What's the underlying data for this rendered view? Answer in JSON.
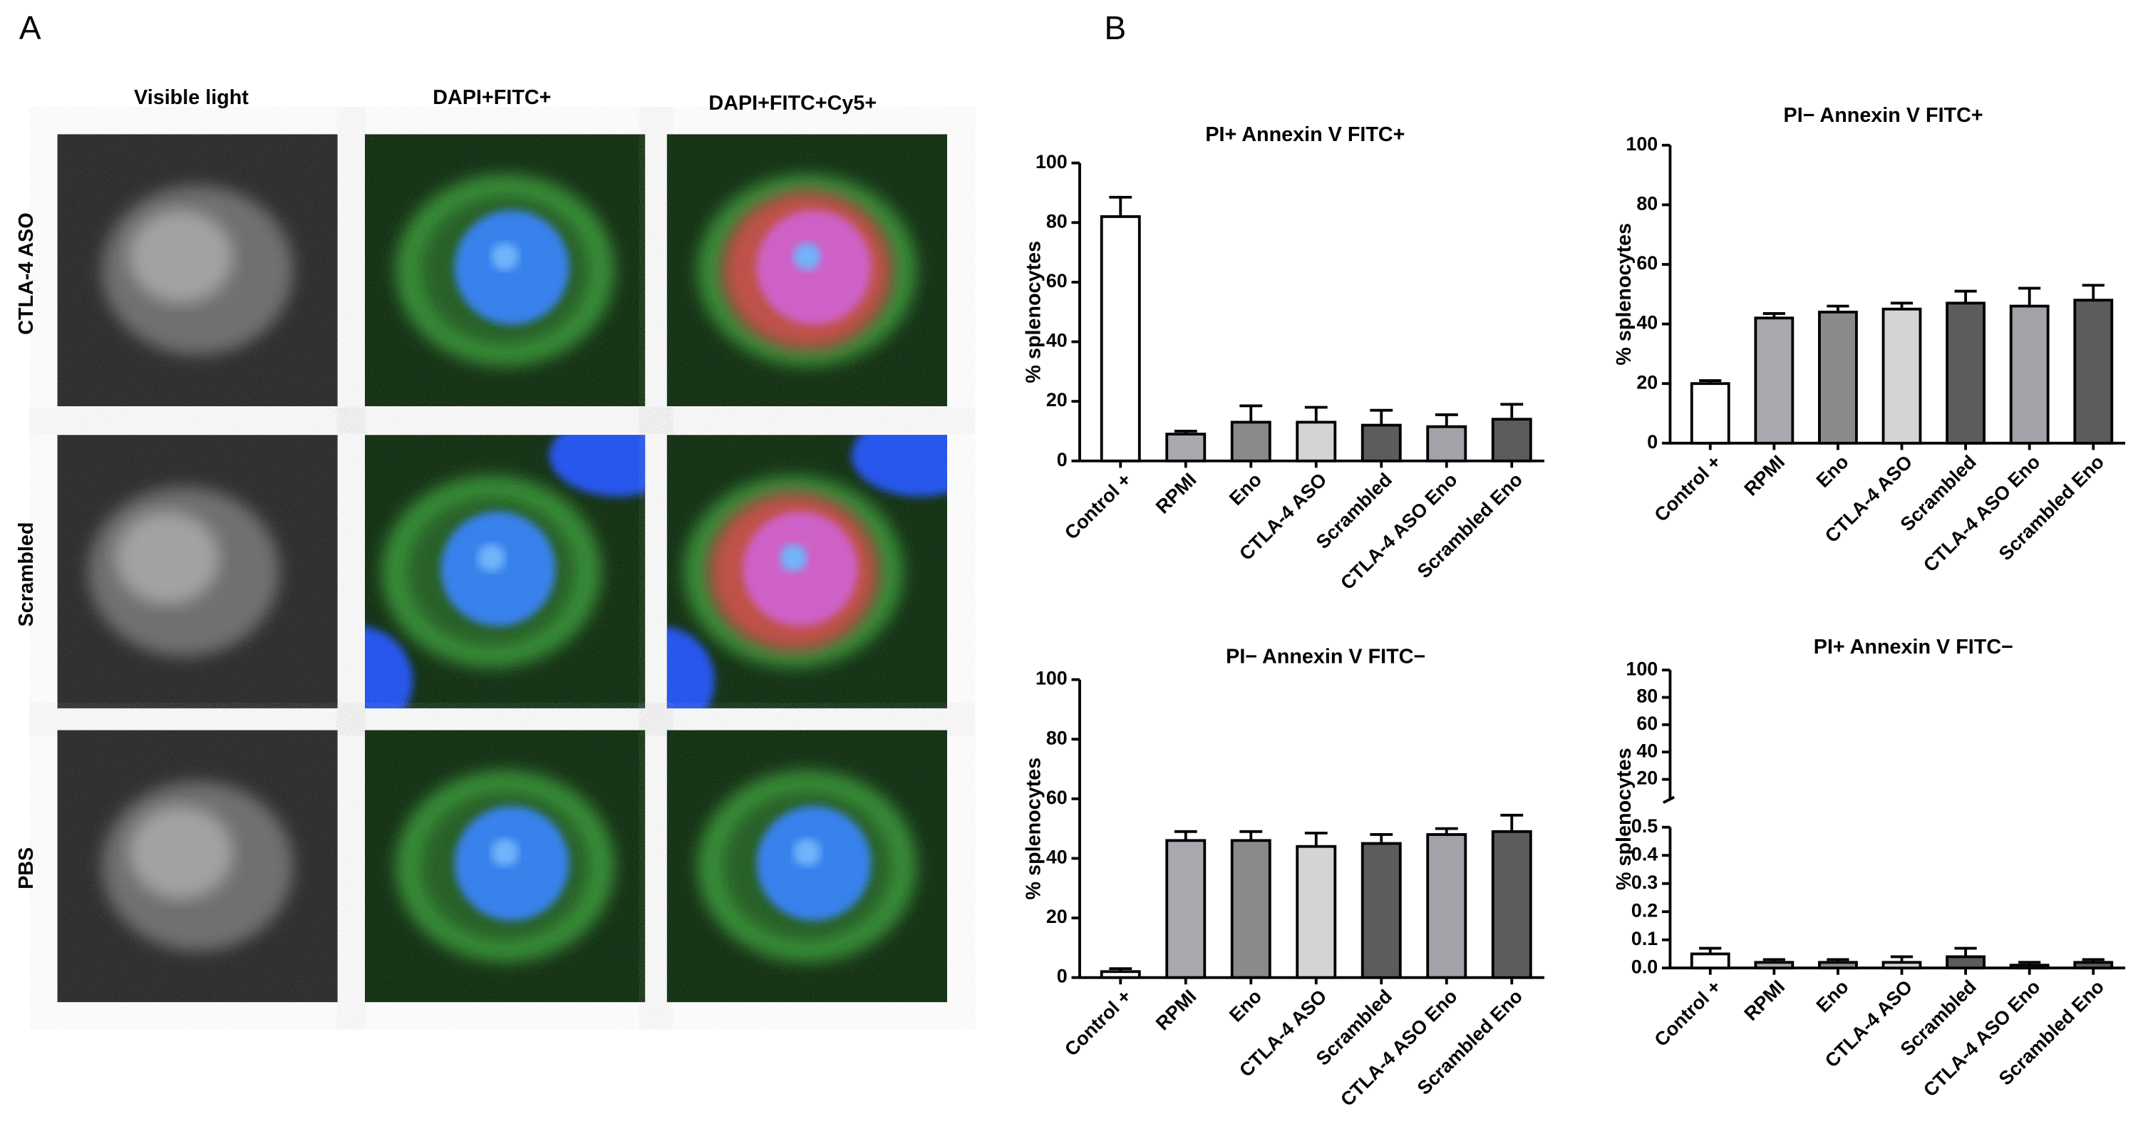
{
  "panels": {
    "a": "A",
    "b": "B"
  },
  "microscopy": {
    "columns": [
      "Visible light",
      "DAPI+FITC+",
      "DAPI+FITC+Cy5+"
    ],
    "rows": [
      "CTLA-4 ASO",
      "Scrambled",
      "PBS"
    ]
  },
  "chart_data": [
    {
      "type": "bar",
      "title": "PI+ Annexin V FITC+",
      "y_label": "% splenocytes",
      "categories": [
        "Control +",
        "RPMI",
        "Eno",
        "CTLA-4 ASO",
        "Scrambled",
        "CTLA-4 ASO Eno",
        "Scrambled Eno"
      ],
      "values": [
        82,
        9,
        13,
        13,
        12,
        11.5,
        14
      ],
      "errors": [
        6.5,
        1,
        5.5,
        5,
        5,
        4,
        5
      ],
      "colors": [
        "#ffffff",
        "#a8a8ae",
        "#8a8a8a",
        "#d4d4d4",
        "#5c5c5c",
        "#a2a2a8",
        "#5c5c5c"
      ],
      "ylim": [
        0,
        100
      ],
      "yticks": [
        0,
        20,
        40,
        60,
        80,
        100
      ]
    },
    {
      "type": "bar",
      "title": "PI− Annexin V FITC+",
      "y_label": "% splenocytes",
      "categories": [
        "Control +",
        "RPMI",
        "Eno",
        "CTLA-4 ASO",
        "Scrambled",
        "CTLA-4 ASO Eno",
        "Scrambled Eno"
      ],
      "values": [
        20,
        42,
        44,
        45,
        47,
        46,
        48
      ],
      "errors": [
        1,
        1.5,
        2,
        2,
        4,
        6,
        5
      ],
      "colors": [
        "#ffffff",
        "#a8a8ae",
        "#8a8a8a",
        "#d4d4d4",
        "#5c5c5c",
        "#a2a2a8",
        "#5c5c5c"
      ],
      "ylim": [
        0,
        100
      ],
      "yticks": [
        0,
        20,
        40,
        60,
        80,
        100
      ]
    },
    {
      "type": "bar",
      "title": "PI− Annexin V FITC−",
      "y_label": "% splenocytes",
      "categories": [
        "Control +",
        "RPMI",
        "Eno",
        "CTLA-4 ASO",
        "Scrambled",
        "CTLA-4 ASO Eno",
        "Scrambled Eno"
      ],
      "values": [
        2,
        46,
        46,
        44,
        45,
        48,
        49
      ],
      "errors": [
        1,
        3,
        3,
        4.5,
        3,
        2,
        5.5
      ],
      "colors": [
        "#ffffff",
        "#a8a8ae",
        "#8a8a8a",
        "#d4d4d4",
        "#5c5c5c",
        "#a2a2a8",
        "#5c5c5c"
      ],
      "ylim": [
        0,
        100
      ],
      "yticks": [
        0,
        20,
        40,
        60,
        80,
        100
      ]
    },
    {
      "type": "bar",
      "title": "PI+ Annexin V FITC−",
      "y_label": "% splenocytes",
      "categories": [
        "Control +",
        "RPMI",
        "Eno",
        "CTLA-4 ASO",
        "Scrambled",
        "CTLA-4 ASO Eno",
        "Scrambled Eno"
      ],
      "values": [
        0.05,
        0.02,
        0.02,
        0.02,
        0.04,
        0.01,
        0.02
      ],
      "errors": [
        0.02,
        0.01,
        0.01,
        0.02,
        0.03,
        0.01,
        0.01
      ],
      "colors": [
        "#ffffff",
        "#a8a8ae",
        "#8a8a8a",
        "#d4d4d4",
        "#5c5c5c",
        "#a2a2a8",
        "#5c5c5c"
      ],
      "ylim": [
        0,
        0.5
      ],
      "yticks": [
        {
          "value": 0,
          "label": "0.0"
        },
        0.1,
        0.2,
        0.3,
        0.4,
        0.5
      ],
      "ylim_upper": [
        10,
        100
      ],
      "yticks_upper": [
        20,
        40,
        60,
        80,
        100
      ]
    }
  ]
}
